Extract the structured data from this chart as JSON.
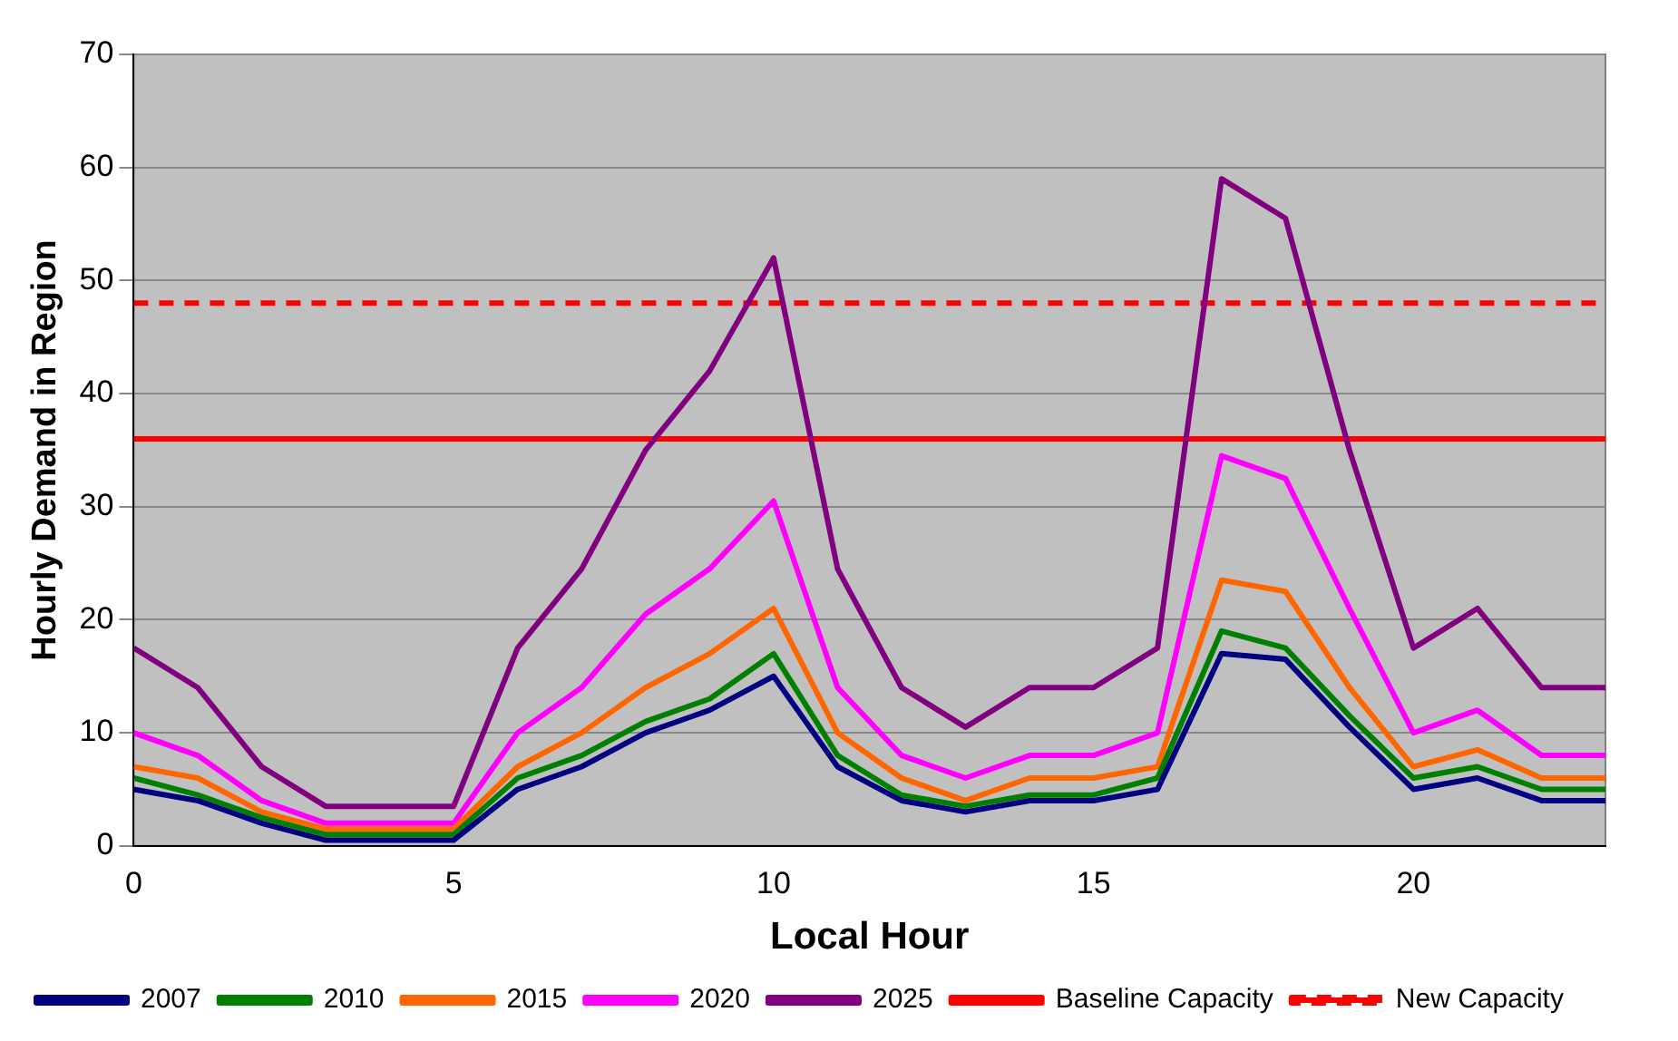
{
  "chart_data": {
    "type": "line",
    "xlabel": "Local Hour",
    "ylabel": "Hourly Demand in Region",
    "x": [
      0,
      1,
      2,
      3,
      4,
      5,
      6,
      7,
      8,
      9,
      10,
      11,
      12,
      13,
      14,
      15,
      16,
      17,
      18,
      19,
      20,
      21,
      22,
      23
    ],
    "xlim": [
      0,
      23
    ],
    "xticks": [
      0,
      5,
      10,
      15,
      20
    ],
    "ylim": [
      0,
      70
    ],
    "yticks": [
      0,
      10,
      20,
      30,
      40,
      50,
      60,
      70
    ],
    "grid": "y",
    "legend": "bottom left",
    "marker": "none",
    "series": [
      {
        "name": "2007",
        "color": "#000080",
        "values": [
          5,
          4,
          2,
          0.5,
          0.5,
          0.5,
          5,
          7,
          10,
          12,
          15,
          7,
          4,
          3,
          4,
          4,
          5,
          17,
          16.5,
          10.5,
          5,
          6,
          4,
          4
        ]
      },
      {
        "name": "2010",
        "color": "#008000",
        "values": [
          6,
          4.5,
          2.5,
          1,
          1,
          1,
          6,
          8,
          11,
          13,
          17,
          8,
          4.5,
          3.5,
          4.5,
          4.5,
          6,
          19,
          17.5,
          11.5,
          6,
          7,
          5,
          5
        ]
      },
      {
        "name": "2015",
        "color": "#ff6600",
        "values": [
          7,
          6,
          3,
          1.5,
          1.5,
          1.5,
          7,
          10,
          14,
          17,
          21,
          10,
          6,
          4,
          6,
          6,
          7,
          23.5,
          22.5,
          14,
          7,
          8.5,
          6,
          6
        ]
      },
      {
        "name": "2020",
        "color": "#ff00ff",
        "values": [
          10,
          8,
          4,
          2,
          2,
          2,
          10,
          14,
          20.5,
          24.5,
          30.5,
          14,
          8,
          6,
          8,
          8,
          10,
          34.5,
          32.5,
          21,
          10,
          12,
          8,
          8
        ]
      },
      {
        "name": "2025",
        "color": "#800080",
        "values": [
          17.5,
          14,
          7,
          3.5,
          3.5,
          3.5,
          17.5,
          24.5,
          35,
          42,
          52,
          24.5,
          14,
          10.5,
          14,
          14,
          17.5,
          59,
          55.5,
          35,
          17.5,
          21,
          14,
          14
        ]
      },
      {
        "name": "Baseline Capacity",
        "color": "#ff0000",
        "line_style": "solid",
        "values": [
          36,
          36,
          36,
          36,
          36,
          36,
          36,
          36,
          36,
          36,
          36,
          36,
          36,
          36,
          36,
          36,
          36,
          36,
          36,
          36,
          36,
          36,
          36,
          36
        ]
      },
      {
        "name": "New Capacity",
        "color": "#ff0000",
        "line_style": "dashed",
        "values": [
          48,
          48,
          48,
          48,
          48,
          48,
          48,
          48,
          48,
          48,
          48,
          48,
          48,
          48,
          48,
          48,
          48,
          48,
          48,
          48,
          48,
          48,
          48,
          48
        ]
      }
    ]
  }
}
